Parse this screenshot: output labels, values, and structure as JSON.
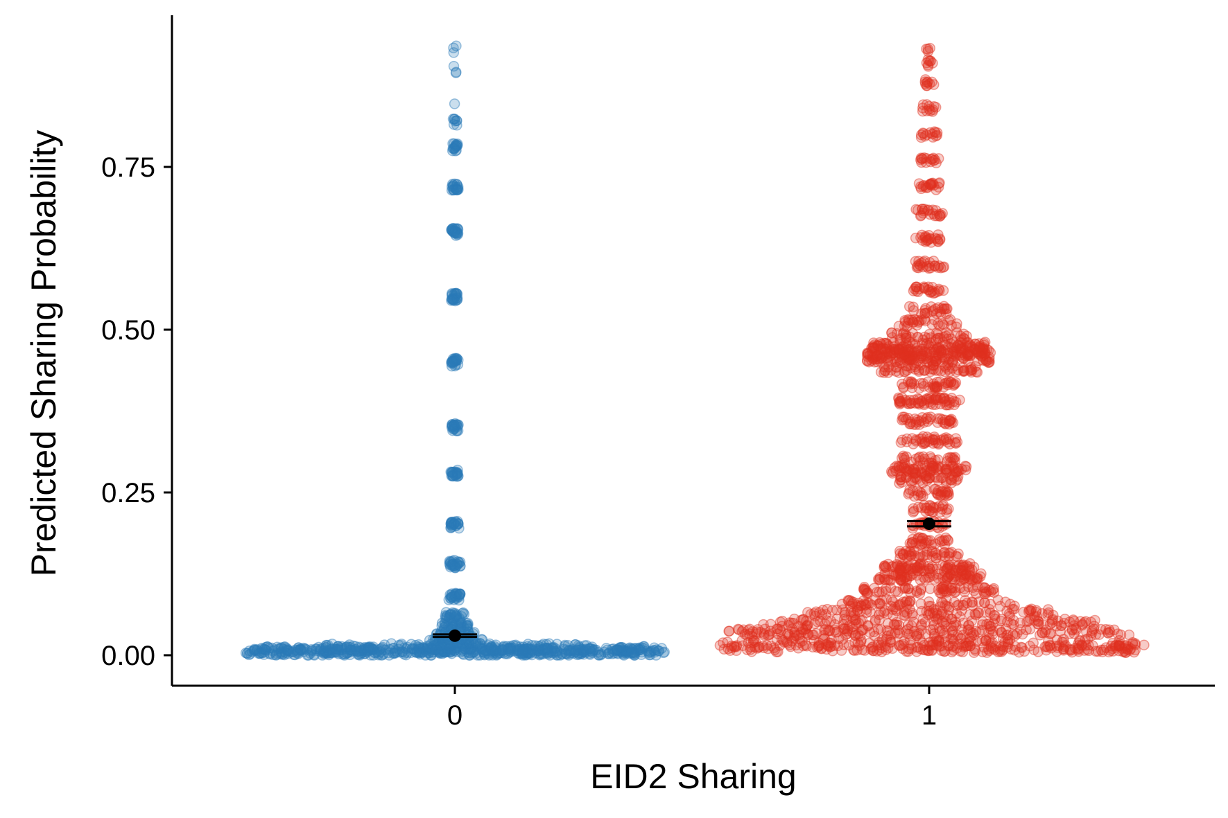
{
  "chart_data": {
    "type": "scatter",
    "subtype": "beeswarm",
    "xlabel": "EID2 Sharing",
    "ylabel": "Predicted Sharing Probability",
    "categories": [
      "0",
      "1"
    ],
    "yticks": [
      "0.00",
      "0.25",
      "0.50",
      "0.75"
    ],
    "ytick_values": [
      0,
      0.25,
      0.5,
      0.75
    ],
    "ylim": [
      -0.045,
      0.955
    ],
    "grid": false,
    "legend": "none",
    "point_opacity": 0.25,
    "groups": [
      {
        "category": "0",
        "color": "#2a7ab9",
        "mean": 0.03,
        "ci": [
          0.028,
          0.032
        ],
        "y_range": [
          0.0,
          0.93
        ],
        "distribution": "extremely dense near 0.00-0.02 (wide horizontal band), thin column up to ~0.82 with sparse outliers to 0.93"
      },
      {
        "category": "1",
        "color": "#e03120",
        "mean": 0.202,
        "ci": [
          0.198,
          0.206
        ],
        "y_range": [
          0.005,
          0.93
        ],
        "distribution": "wide base at 0.00-0.06, bands at ~0.13, ~0.285, ~0.39, ~0.465, narrowing toward 0.93"
      }
    ]
  }
}
